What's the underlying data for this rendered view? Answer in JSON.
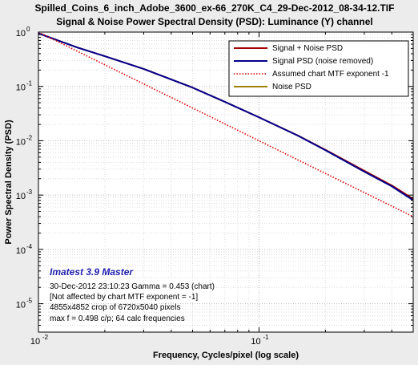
{
  "chart_data": {
    "type": "line",
    "title": "Spilled_Coins_6_inch_Adobe_3600_ex-66_270K_C4_29-Dec-2012_08-34-12.TIF",
    "subtitle": "Signal & Noise Power Spectral Density (PSD):  Luminance (Y) channel",
    "xlabel": "Frequency, Cycles/pixel (log scale)",
    "ylabel": "Power Spectral Density (PSD)",
    "xscale": "log",
    "yscale": "log",
    "xlim": [
      0.01,
      0.5
    ],
    "ylim": [
      3e-06,
      1
    ],
    "grid": true,
    "legend_position": "top-right",
    "x_ticks": [
      {
        "value": 0.01,
        "base": "10",
        "exp": "-2"
      },
      {
        "value": 0.1,
        "base": "10",
        "exp": "-1"
      }
    ],
    "y_ticks": [
      {
        "value": 1,
        "base": "10",
        "exp": "0"
      },
      {
        "value": 0.1,
        "base": "10",
        "exp": "-1"
      },
      {
        "value": 0.01,
        "base": "10",
        "exp": "-2"
      },
      {
        "value": 0.001,
        "base": "10",
        "exp": "-3"
      },
      {
        "value": 0.0001,
        "base": "10",
        "exp": "-4"
      },
      {
        "value": 1e-05,
        "base": "10",
        "exp": "-5"
      }
    ],
    "series": [
      {
        "name": "Signal + Noise PSD",
        "color": "#a00000",
        "style": "solid",
        "x": [
          0.01,
          0.015,
          0.02,
          0.03,
          0.05,
          0.07,
          0.1,
          0.15,
          0.2,
          0.3,
          0.4,
          0.5
        ],
        "y": [
          0.95,
          0.52,
          0.36,
          0.21,
          0.095,
          0.052,
          0.027,
          0.0125,
          0.0068,
          0.0028,
          0.0015,
          0.00085
        ]
      },
      {
        "name": "Signal PSD (noise removed)",
        "color": "#00008b",
        "style": "solid",
        "x": [
          0.01,
          0.015,
          0.02,
          0.03,
          0.05,
          0.07,
          0.1,
          0.15,
          0.2,
          0.3,
          0.4,
          0.5
        ],
        "y": [
          0.95,
          0.52,
          0.36,
          0.21,
          0.095,
          0.052,
          0.027,
          0.0124,
          0.0067,
          0.0027,
          0.00145,
          0.0008
        ]
      },
      {
        "name": "Assumed chart MTF exponent  -1",
        "color": "#e00000",
        "style": "dotted",
        "x": [
          0.01,
          0.5
        ],
        "y": [
          1.0,
          0.0004
        ]
      },
      {
        "name": "Noise PSD",
        "color": "#a08000",
        "style": "solid",
        "x": [],
        "y": []
      }
    ],
    "annotations": {
      "brand": "Imatest 3.9 Master",
      "lines": [
        "30-Dec-2012 23:10:23    Gamma = 0.453 (chart)",
        "[Not affected by chart MTF exponent = -1]",
        "4855x4852 crop of 6720x5040 pixels",
        "max f = 0.498 c/p;  64 calc frequencies"
      ]
    }
  }
}
